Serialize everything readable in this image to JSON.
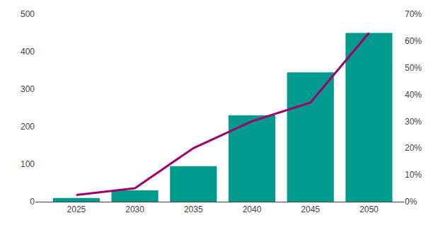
{
  "chart_data": {
    "type": "bar",
    "x": [
      2025,
      2030,
      2035,
      2040,
      2045,
      2050
    ],
    "series": [
      {
        "type": "bar",
        "color": "#009B8D",
        "values": [
          10,
          30,
          95,
          230,
          345,
          450
        ]
      },
      {
        "type": "line",
        "color": "#A0006E",
        "axis": "y2",
        "values": [
          0.025,
          0.05,
          0.2,
          0.3,
          0.37,
          0.63
        ]
      }
    ],
    "xlim": [
      2021.5,
      2053
    ],
    "xticks": [
      2025,
      2030,
      2035,
      2040,
      2045,
      2050
    ],
    "ylim": [
      0,
      500
    ],
    "yticks": [
      0,
      100,
      200,
      300,
      400,
      500
    ],
    "y2lim": [
      0,
      0.7
    ],
    "y2ticks": [
      {
        "value": 0.0,
        "label": "0%"
      },
      {
        "value": 0.1,
        "label": "10%"
      },
      {
        "value": 0.2,
        "label": "20%"
      },
      {
        "value": 0.3,
        "label": "30%"
      },
      {
        "value": 0.4,
        "label": "40%"
      },
      {
        "value": 0.5,
        "label": "50%"
      },
      {
        "value": 0.6,
        "label": "60%"
      },
      {
        "value": 0.7,
        "label": "70%"
      }
    ],
    "grid": false
  }
}
